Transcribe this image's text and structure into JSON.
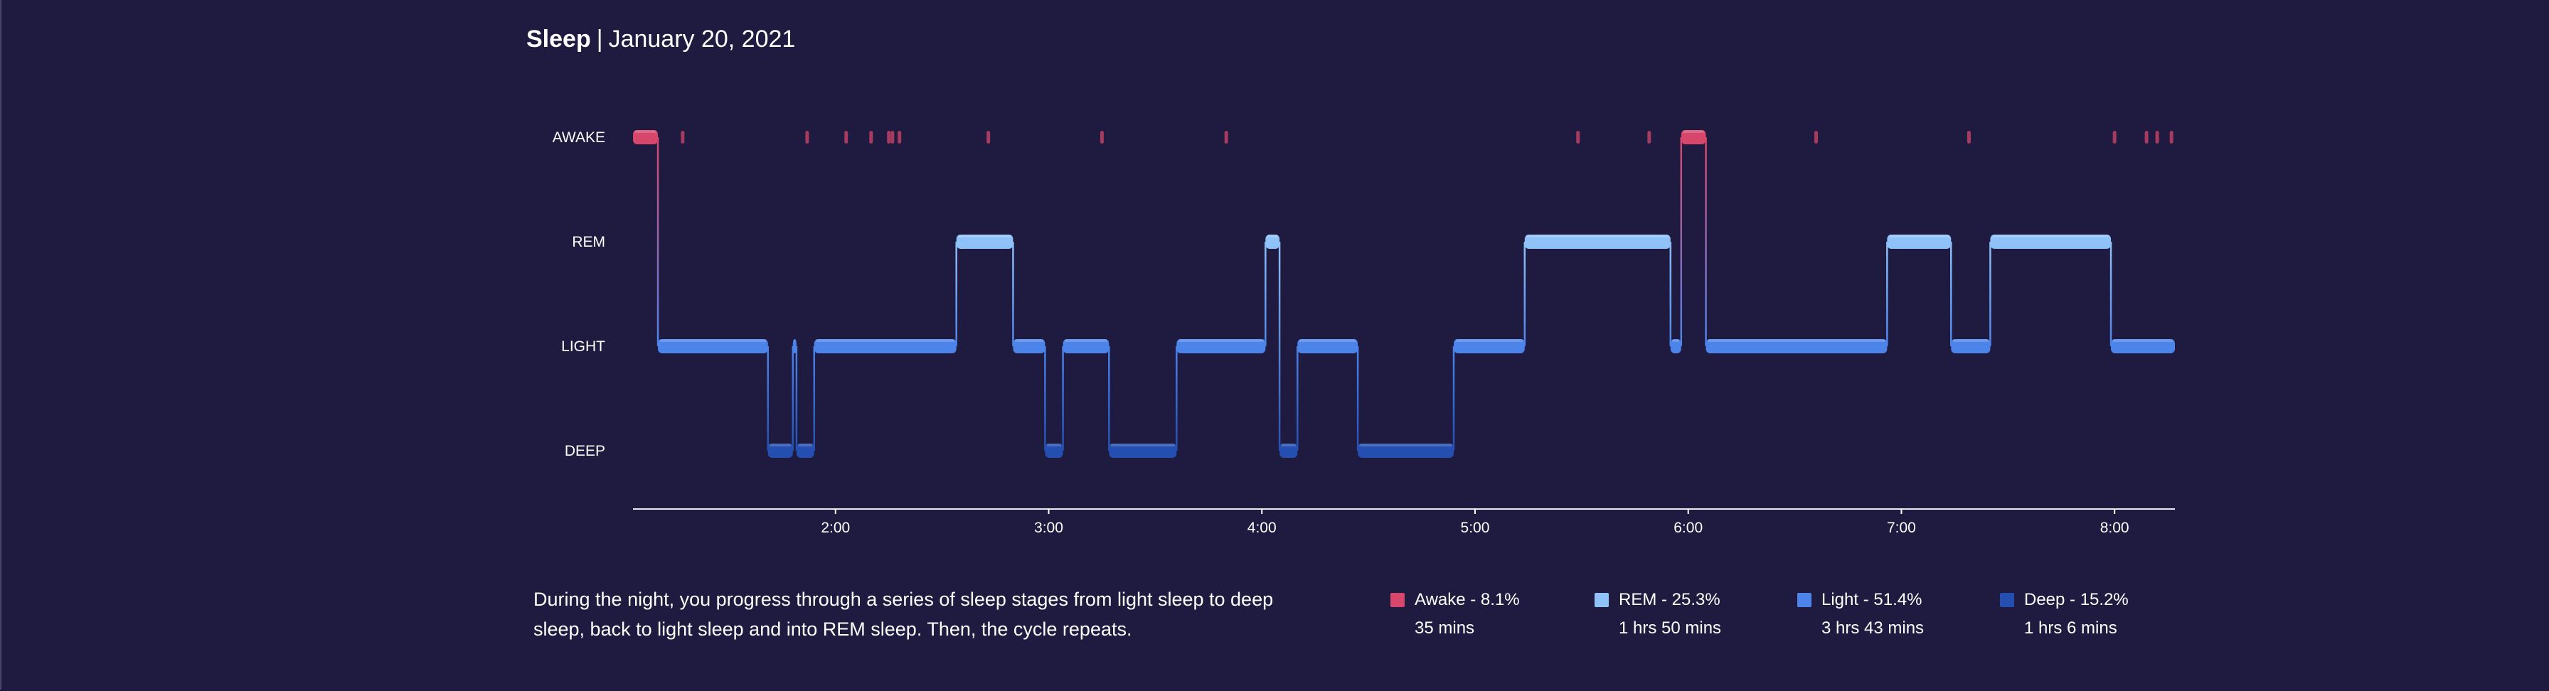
{
  "header": {
    "title": "Sleep",
    "separator": "|",
    "date": "January 20, 2021"
  },
  "description": "During the night, you progress through a series of sleep stages from light sleep to deep sleep, back to light sleep and into REM sleep. Then, the cycle repeats.",
  "legend": [
    {
      "label": "Awake - 8.1%",
      "duration": "35 mins",
      "color": "#d6476b"
    },
    {
      "label": "REM - 25.3%",
      "duration": "1 hrs 50 mins",
      "color": "#8fc2f8"
    },
    {
      "label": "Light - 51.4%",
      "duration": "3 hrs 43 mins",
      "color": "#4d84ea"
    },
    {
      "label": "Deep - 15.2%",
      "duration": "1 hrs 6 mins",
      "color": "#244fb0"
    }
  ],
  "colors": {
    "background": "#1f1a3f",
    "awake": "#d6476b",
    "rem": "#8fc2f8",
    "light": "#4d84ea",
    "deep": "#244fb0"
  },
  "chart_data": {
    "type": "step",
    "title": "Sleep",
    "stages": [
      "AWAKE",
      "REM",
      "LIGHT",
      "DEEP"
    ],
    "x_unit": "time of day",
    "xlim": [
      "1:03",
      "8:17"
    ],
    "xticks": [
      "2:00",
      "3:00",
      "4:00",
      "5:00",
      "6:00",
      "7:00",
      "8:00"
    ],
    "xtick_values_h": [
      2,
      3,
      4,
      5,
      6,
      7,
      8
    ],
    "xlim_h": [
      1.05,
      8.283
    ],
    "segments": [
      {
        "stage": "AWAKE",
        "start": 1.05,
        "end": 1.167
      },
      {
        "stage": "LIGHT",
        "start": 1.167,
        "end": 1.683
      },
      {
        "stage": "DEEP",
        "start": 1.683,
        "end": 1.8
      },
      {
        "stage": "LIGHT",
        "start": 1.8,
        "end": 1.817
      },
      {
        "stage": "DEEP",
        "start": 1.817,
        "end": 1.9
      },
      {
        "stage": "LIGHT",
        "start": 1.9,
        "end": 2.567
      },
      {
        "stage": "REM",
        "start": 2.567,
        "end": 2.833
      },
      {
        "stage": "LIGHT",
        "start": 2.833,
        "end": 2.983
      },
      {
        "stage": "DEEP",
        "start": 2.983,
        "end": 3.067
      },
      {
        "stage": "LIGHT",
        "start": 3.067,
        "end": 3.283
      },
      {
        "stage": "DEEP",
        "start": 3.283,
        "end": 3.6
      },
      {
        "stage": "LIGHT",
        "start": 3.6,
        "end": 4.017
      },
      {
        "stage": "REM",
        "start": 4.017,
        "end": 4.083
      },
      {
        "stage": "DEEP",
        "start": 4.083,
        "end": 4.167
      },
      {
        "stage": "LIGHT",
        "start": 4.167,
        "end": 4.45
      },
      {
        "stage": "DEEP",
        "start": 4.45,
        "end": 4.9
      },
      {
        "stage": "LIGHT",
        "start": 4.9,
        "end": 5.233
      },
      {
        "stage": "REM",
        "start": 5.233,
        "end": 5.917
      },
      {
        "stage": "LIGHT",
        "start": 5.917,
        "end": 5.967
      },
      {
        "stage": "AWAKE",
        "start": 5.967,
        "end": 6.083
      },
      {
        "stage": "LIGHT",
        "start": 6.083,
        "end": 6.933
      },
      {
        "stage": "REM",
        "start": 6.933,
        "end": 7.233
      },
      {
        "stage": "LIGHT",
        "start": 7.233,
        "end": 7.417
      },
      {
        "stage": "REM",
        "start": 7.417,
        "end": 7.983
      },
      {
        "stage": "LIGHT",
        "start": 7.983,
        "end": 8.283
      }
    ],
    "brief_awakenings_h": [
      1.283,
      1.867,
      2.05,
      2.167,
      2.25,
      2.267,
      2.3,
      2.717,
      3.25,
      3.833,
      5.483,
      5.817,
      6.6,
      7.317,
      8.0,
      8.15,
      8.2,
      8.267
    ]
  }
}
